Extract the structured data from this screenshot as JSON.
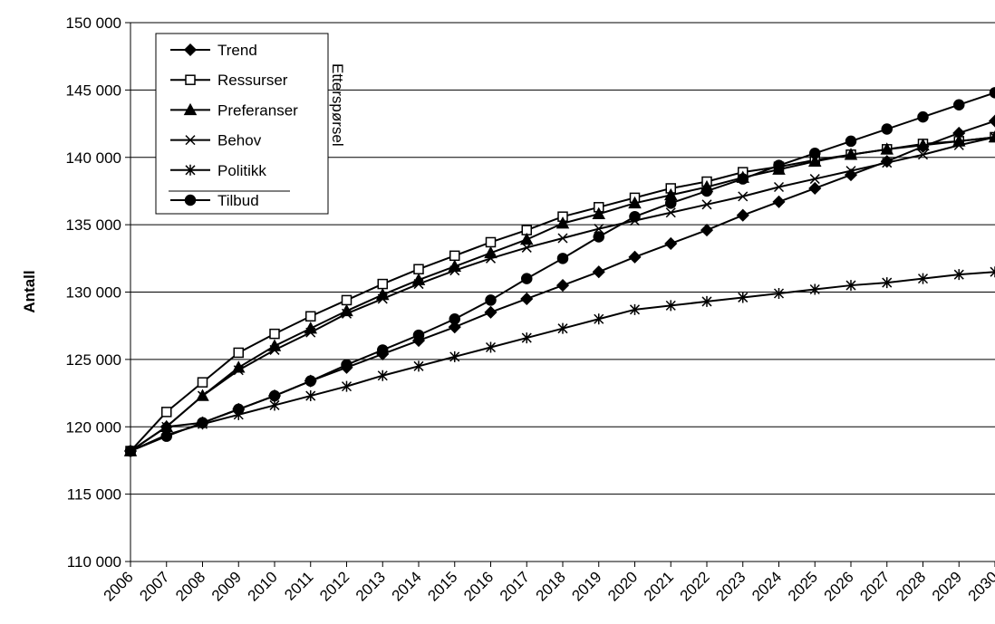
{
  "chart_data": {
    "type": "line",
    "y_label": "Antall",
    "legend_annotation": "Etterspørsel",
    "legend_position": "upper-left",
    "grid": true,
    "categories": [
      "2006",
      "2007",
      "2008",
      "2009",
      "2010",
      "2011",
      "2012",
      "2013",
      "2014",
      "2015",
      "2016",
      "2017",
      "2018",
      "2019",
      "2020",
      "2021",
      "2022",
      "2023",
      "2024",
      "2025",
      "2026",
      "2027",
      "2028",
      "2029",
      "2030"
    ],
    "ylim": [
      110000,
      150000
    ],
    "yticks": [
      {
        "value": 110000,
        "label": "110 000"
      },
      {
        "value": 115000,
        "label": "115 000"
      },
      {
        "value": 120000,
        "label": "120 000"
      },
      {
        "value": 125000,
        "label": "125 000"
      },
      {
        "value": 130000,
        "label": "130 000"
      },
      {
        "value": 135000,
        "label": "135 000"
      },
      {
        "value": 140000,
        "label": "140 000"
      },
      {
        "value": 145000,
        "label": "145 000"
      },
      {
        "value": 150000,
        "label": "150 000"
      }
    ],
    "series": [
      {
        "name": "Trend",
        "color": "#000000",
        "marker": "diamond",
        "values": [
          118200,
          120000,
          120300,
          121300,
          122300,
          123400,
          124400,
          125400,
          126400,
          127400,
          128500,
          129500,
          130500,
          131500,
          132600,
          133600,
          134600,
          135700,
          136700,
          137700,
          138700,
          139700,
          140800,
          141800,
          142700
        ]
      },
      {
        "name": "Ressurser",
        "color": "#000000",
        "marker": "square",
        "values": [
          118200,
          121100,
          123300,
          125500,
          126900,
          128200,
          129400,
          130600,
          131700,
          132700,
          133700,
          134600,
          135600,
          136300,
          137000,
          137700,
          138200,
          138900,
          139300,
          139800,
          140200,
          140600,
          141000,
          141200,
          141500
        ]
      },
      {
        "name": "Preferanser",
        "color": "#000000",
        "marker": "triangle",
        "values": [
          118200,
          120000,
          122300,
          124400,
          126000,
          127300,
          128600,
          129800,
          130900,
          131900,
          132900,
          133900,
          135100,
          135800,
          136600,
          137200,
          137800,
          138500,
          139100,
          139700,
          140200,
          140600,
          140900,
          141200,
          141500
        ]
      },
      {
        "name": "Behov",
        "color": "#000000",
        "marker": "x",
        "values": [
          118200,
          120000,
          122300,
          124200,
          125700,
          127000,
          128400,
          129500,
          130600,
          131600,
          132500,
          133300,
          134000,
          134700,
          135300,
          135900,
          136500,
          137100,
          137800,
          138400,
          139000,
          139600,
          140200,
          140900,
          141500
        ]
      },
      {
        "name": "Politikk",
        "color": "#000000",
        "marker": "asterisk",
        "values": [
          118200,
          119400,
          120200,
          120900,
          121600,
          122300,
          123000,
          123800,
          124500,
          125200,
          125900,
          126600,
          127300,
          128000,
          128700,
          129000,
          129300,
          129600,
          129900,
          130200,
          130500,
          130700,
          131000,
          131300,
          131500
        ]
      },
      {
        "name": "Tilbud",
        "color": "#000000",
        "marker": "circle",
        "values": [
          118200,
          119300,
          120300,
          121300,
          122300,
          123400,
          124600,
          125700,
          126800,
          128000,
          129400,
          131000,
          132500,
          134100,
          135600,
          136600,
          137500,
          138400,
          139400,
          140300,
          141200,
          142100,
          143000,
          143900,
          144800
        ]
      }
    ]
  }
}
